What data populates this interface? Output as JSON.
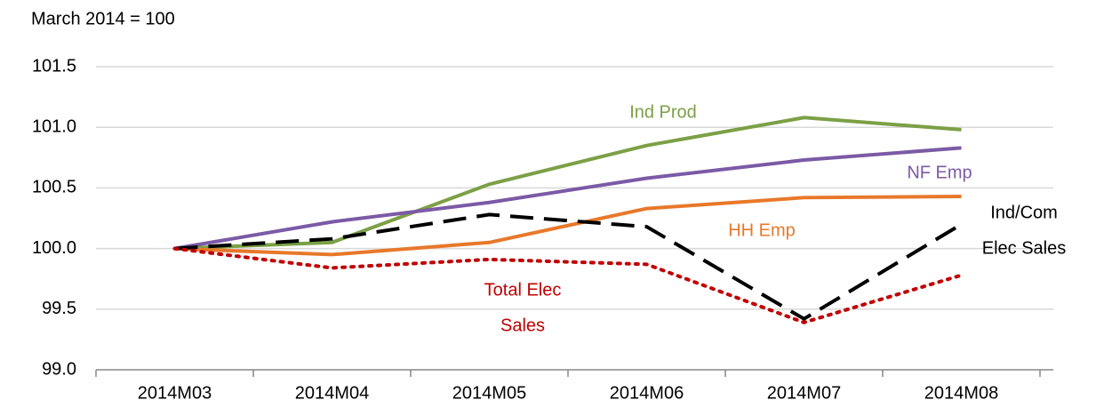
{
  "chart_data": {
    "type": "line",
    "y_label": "March 2014 = 100",
    "categories": [
      "2014M03",
      "2014M04",
      "2014M05",
      "2014M06",
      "2014M07",
      "2014M08"
    ],
    "ylim": [
      99.0,
      101.5
    ],
    "yticks": [
      {
        "value": 99,
        "label": "99.0"
      },
      99.5,
      {
        "value": 100,
        "label": "100.0"
      },
      100.5,
      {
        "value": 101,
        "label": "101.0"
      },
      101.5
    ],
    "grid": true,
    "series": [
      {
        "label": [
          "Ind Prod"
        ],
        "color": "#7ba046",
        "style": "solid",
        "values": [
          100.0,
          100.05,
          100.53,
          100.85,
          101.08,
          100.98
        ]
      },
      {
        "label": [
          "NF Emp"
        ],
        "color": "#7b5aa6",
        "style": "solid",
        "values": [
          100.0,
          100.22,
          100.38,
          100.58,
          100.73,
          100.83
        ]
      },
      {
        "label": [
          "HH Emp"
        ],
        "color": "#e8782a",
        "style": "solid",
        "values": [
          100.0,
          99.95,
          100.05,
          100.33,
          100.42,
          100.43
        ]
      },
      {
        "label": [
          "Ind/Com",
          "Elec Sales"
        ],
        "color": "#000000",
        "style": "dashed",
        "values": [
          100.0,
          100.08,
          100.28,
          100.18,
          99.42,
          100.2
        ]
      },
      {
        "label": [
          "Total Elec",
          "Sales"
        ],
        "color": "#c00000",
        "style": "dotted",
        "values": [
          100.0,
          99.84,
          99.91,
          99.87,
          99.39,
          99.78
        ]
      }
    ]
  }
}
